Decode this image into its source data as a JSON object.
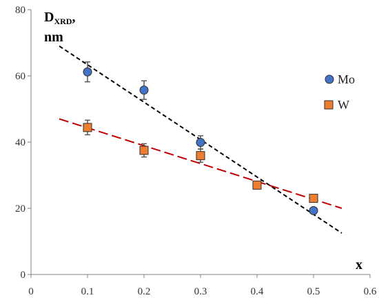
{
  "chart_data": {
    "type": "scatter",
    "xlim": [
      0,
      0.6
    ],
    "ylim": [
      0,
      80
    ],
    "xticks": [
      "0",
      "0.1",
      "0.2",
      "0.3",
      "0.4",
      "0.5",
      "0.6"
    ],
    "yticks": [
      "0",
      "20",
      "40",
      "60",
      "80"
    ],
    "xlabel": "x",
    "ylabel": {
      "main": "D",
      "sub": "XRD",
      "suffix": ",",
      "unit": "nm"
    },
    "grid": false,
    "legend_position": "right",
    "series": [
      {
        "name": "Mo",
        "marker": "circle",
        "color": "#4472C4",
        "x": [
          0.1,
          0.2,
          0.3,
          0.5
        ],
        "y": [
          61.2,
          55.7,
          39.9,
          19.3
        ],
        "error": [
          3.0,
          2.8,
          2.0,
          0
        ],
        "trendline": {
          "x": [
            0.05,
            0.55
          ],
          "y": [
            69.0,
            12.5
          ],
          "color": "#000000"
        }
      },
      {
        "name": "W",
        "marker": "square",
        "color": "#ED7D31",
        "x": [
          0.1,
          0.2,
          0.3,
          0.4,
          0.5
        ],
        "y": [
          44.4,
          37.5,
          35.9,
          27.0,
          23.0
        ],
        "error": [
          2.2,
          2.0,
          2.0,
          1.0,
          0
        ],
        "trendline": {
          "x": [
            0.05,
            0.55
          ],
          "y": [
            47.0,
            20.0
          ],
          "color": "#C00000"
        }
      }
    ]
  }
}
